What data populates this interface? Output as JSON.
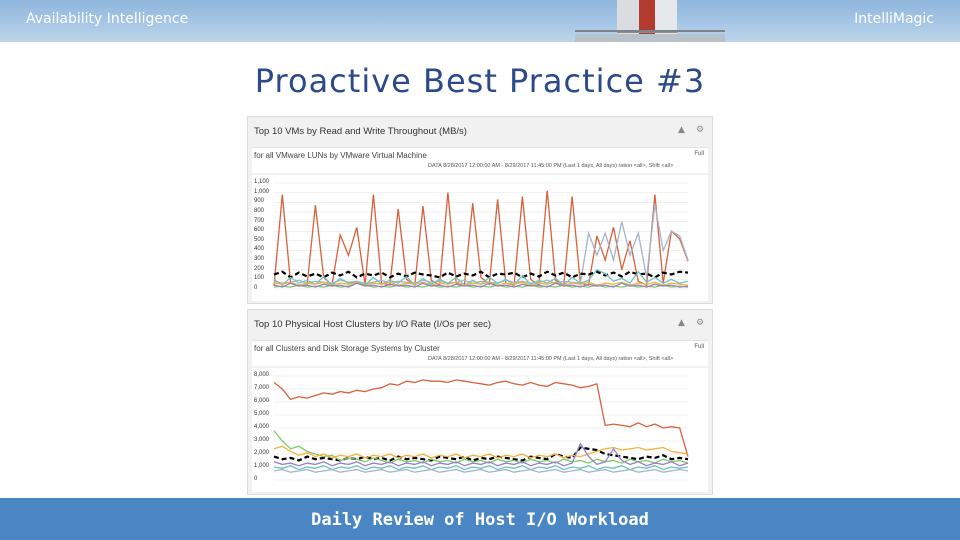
{
  "header": {
    "brand_left": "Availability Intelligence",
    "brand_right": "IntelliMagic"
  },
  "slide_title": "Proactive Best Practice #3",
  "footer": "Daily Review of Host I/O Workload",
  "colors": {
    "footer": "#4a86c4",
    "title": "#2c4a8a",
    "panel_bg": "#f1f1f1"
  },
  "panels": [
    {
      "title": "Top 10 VMs by Read and Write Throughout (MB/s)",
      "subtitle": "for all VMware LUNs by VMware Virtual Machine",
      "range": "DATA 8/28/2017 12:00:00 AM - 8/29/2017 11:45:00 PM (Last 1 days, All days)  ration <all>, Shift <all>",
      "full_label": "Full",
      "controls": [
        "collapse-icon",
        "gear-icon"
      ],
      "chart_data": {
        "type": "line",
        "y_ticks": [
          "1,100",
          "1,000",
          "900",
          "800",
          "700",
          "600",
          "500",
          "400",
          "300",
          "200",
          "100",
          "0"
        ],
        "ylim": [
          0,
          1100
        ],
        "series": [
          {
            "color": "#d9603b",
            "values": [
              30,
              980,
              60,
              30,
              40,
              870,
              120,
              40,
              560,
              350,
              640,
              40,
              980,
              60,
              40,
              830,
              100,
              40,
              860,
              90,
              40,
              1000,
              60,
              40,
              890,
              120,
              50,
              930,
              60,
              40,
              960,
              100,
              40,
              1020,
              90,
              40,
              960,
              60,
              40,
              550,
              300,
              640,
              200,
              500,
              80,
              40,
              980,
              60,
              600,
              520,
              290
            ]
          },
          {
            "color": "#a5b4c9",
            "values": [
              80,
              60,
              70,
              90,
              60,
              80,
              70,
              60,
              90,
              70,
              80,
              60,
              70,
              90,
              60,
              80,
              70,
              60,
              90,
              70,
              80,
              60,
              70,
              90,
              60,
              80,
              70,
              60,
              90,
              70,
              80,
              60,
              70,
              90,
              60,
              80,
              70,
              60,
              580,
              350,
              580,
              300,
              700,
              350,
              580,
              120,
              880,
              400,
              600,
              550,
              300
            ]
          },
          {
            "color": "#000000",
            "dashed": true,
            "values": [
              150,
              180,
              120,
              170,
              130,
              160,
              120,
              170,
              140,
              180,
              120,
              160,
              140,
              170,
              120,
              160,
              130,
              170,
              150,
              140,
              120,
              170,
              130,
              160,
              140,
              180,
              120,
              160,
              150,
              170,
              120,
              160,
              130,
              180,
              140,
              170,
              120,
              160,
              150,
              180,
              140,
              170,
              130,
              180,
              150,
              160,
              120,
              170,
              150,
              180,
              170
            ]
          },
          {
            "color": "#6cc3c0",
            "values": [
              100,
              40,
              120,
              60,
              90,
              50,
              130,
              40,
              110,
              60,
              80,
              40,
              120,
              50,
              90,
              60,
              130,
              40,
              110,
              50,
              100,
              60,
              120,
              40,
              90,
              50,
              120,
              60,
              100,
              40,
              140,
              50,
              90,
              60,
              110,
              40,
              120,
              60,
              90,
              200,
              160,
              80,
              110,
              60,
              180,
              70,
              120,
              60,
              100,
              60,
              80
            ]
          },
          {
            "color": "#f2b33d",
            "values": [
              60,
              50,
              70,
              40,
              60,
              50,
              70,
              40,
              60,
              50,
              70,
              40,
              60,
              50,
              70,
              40,
              60,
              50,
              70,
              40,
              60,
              50,
              70,
              40,
              60,
              50,
              70,
              40,
              60,
              50,
              70,
              40,
              60,
              50,
              70,
              40,
              60,
              50,
              70,
              40,
              60,
              50,
              70,
              40,
              60,
              50,
              70,
              40,
              60,
              50,
              40
            ]
          },
          {
            "color": "#7dc86b",
            "values": [
              20,
              30,
              20,
              40,
              20,
              30,
              20,
              40,
              20,
              30,
              60,
              40,
              20,
              30,
              20,
              40,
              20,
              30,
              20,
              40,
              20,
              30,
              20,
              40,
              20,
              30,
              20,
              40,
              20,
              30,
              20,
              40,
              20,
              30,
              20,
              40,
              20,
              30,
              20,
              40,
              20,
              30,
              20,
              40,
              20,
              30,
              20,
              40,
              20,
              30,
              20
            ]
          },
          {
            "color": "#9b7fc6",
            "values": [
              40,
              20,
              60,
              30,
              40,
              20,
              50,
              30,
              40,
              20,
              60,
              30,
              40,
              20,
              50,
              30,
              40,
              20,
              60,
              30,
              40,
              20,
              50,
              30,
              40,
              20,
              60,
              30,
              40,
              20,
              50,
              30,
              40,
              20,
              60,
              30,
              40,
              20,
              50,
              30,
              40,
              20,
              60,
              30,
              40,
              20,
              50,
              30,
              40,
              20,
              30
            ]
          }
        ]
      }
    },
    {
      "title": "Top 10 Physical Host Clusters by I/O Rate (I/Os per sec)",
      "subtitle": "for all Clusters and Disk Storage Systems by Cluster",
      "range": "DATA 8/28/2017 12:00:00 AM - 8/29/2017 11:45:00 PM (Last 1 days, All days)  ration <all>, Shift <all>",
      "full_label": "Full",
      "controls": [
        "collapse-icon",
        "gear-icon"
      ],
      "chart_data": {
        "type": "line",
        "y_ticks": [
          "8,000",
          "7,000",
          "6,000",
          "5,000",
          "4,000",
          "3,000",
          "2,000",
          "1,000",
          "0"
        ],
        "ylim": [
          0,
          8000
        ],
        "series": [
          {
            "color": "#d9603b",
            "values": [
              7500,
              7000,
              6200,
              6400,
              6300,
              6500,
              6700,
              6600,
              6800,
              6700,
              6900,
              6800,
              7000,
              7100,
              7400,
              7300,
              7600,
              7500,
              7700,
              7600,
              7600,
              7500,
              7700,
              7600,
              7500,
              7400,
              7300,
              7500,
              7600,
              7400,
              7300,
              7500,
              7300,
              7200,
              7500,
              7400,
              7300,
              7100,
              7200,
              7400,
              4200,
              4300,
              4200,
              4100,
              4400,
              4100,
              4300,
              4000,
              4100,
              4000,
              1800
            ]
          },
          {
            "color": "#000000",
            "dashed": true,
            "values": [
              1800,
              1600,
              1700,
              1500,
              1800,
              1600,
              1700,
              1600,
              1500,
              1700,
              1600,
              1800,
              1600,
              1700,
              1500,
              1800,
              1600,
              1700,
              1600,
              1500,
              1800,
              1700,
              1600,
              1800,
              1500,
              1700,
              1600,
              1800,
              1700,
              1600,
              1500,
              1800,
              1700,
              1600,
              2000,
              1800,
              1700,
              2500,
              2400,
              2300,
              2000,
              1900,
              1800,
              1700,
              1600,
              1800,
              1700,
              1900,
              1600,
              1700,
              1600
            ]
          },
          {
            "color": "#7dc86b",
            "values": [
              3800,
              3000,
              2400,
              2600,
              2200,
              2000,
              1800,
              1900,
              1500,
              1700,
              1600,
              1400,
              1700,
              1500,
              1300,
              1600,
              1400,
              1500,
              1300,
              1600,
              1400,
              1500,
              1300,
              1600,
              1400,
              1500,
              1300,
              1600,
              1400,
              1500,
              1300,
              1600,
              1400,
              1500,
              1300,
              1600,
              1400,
              1500,
              1300,
              1600,
              1400,
              1500,
              1300,
              1600,
              1400,
              1500,
              1300,
              1600,
              1400,
              1500,
              1300
            ]
          },
          {
            "color": "#f2b33d",
            "values": [
              2400,
              2600,
              2200,
              1900,
              2100,
              1800,
              2000,
              1700,
              1900,
              1800,
              2000,
              1700,
              1900,
              1800,
              2000,
              1700,
              1900,
              1800,
              2000,
              1700,
              1900,
              1800,
              2000,
              1700,
              1900,
              1800,
              2000,
              1700,
              1900,
              1800,
              2000,
              1700,
              1900,
              1800,
              2000,
              1700,
              1900,
              1800,
              2000,
              2200,
              2400,
              2500,
              2300,
              2400,
              2500,
              2300,
              2400,
              2500,
              2200,
              2100,
              2000
            ]
          },
          {
            "color": "#9b7fc6",
            "values": [
              1400,
              1200,
              1300,
              1100,
              1300,
              1200,
              1400,
              1100,
              1300,
              1200,
              1400,
              1100,
              1300,
              1200,
              1400,
              1100,
              1300,
              1200,
              1400,
              1100,
              1300,
              1200,
              1400,
              1100,
              1300,
              1200,
              1400,
              1100,
              1300,
              1200,
              1400,
              1100,
              1300,
              1200,
              1400,
              1100,
              1300,
              2800,
              1800,
              1200,
              1400,
              2400,
              1500,
              1200,
              1400,
              1100,
              1300,
              1200,
              1400,
              1100,
              1300
            ]
          },
          {
            "color": "#6cc3c0",
            "values": [
              1000,
              900,
              1100,
              800,
              1000,
              900,
              1100,
              800,
              1000,
              900,
              1100,
              800,
              1000,
              900,
              1100,
              800,
              1000,
              900,
              1100,
              800,
              1000,
              900,
              1100,
              800,
              1000,
              900,
              1100,
              800,
              1000,
              900,
              1100,
              800,
              1000,
              900,
              1100,
              800,
              1000,
              900,
              1100,
              800,
              1000,
              900,
              1100,
              800,
              1000,
              900,
              1100,
              800,
              1000,
              900,
              1000
            ]
          },
          {
            "color": "#a5b4c9",
            "values": [
              700,
              800,
              600,
              700,
              800,
              600,
              700,
              800,
              600,
              700,
              800,
              600,
              700,
              800,
              600,
              700,
              800,
              600,
              700,
              800,
              600,
              700,
              800,
              600,
              700,
              800,
              600,
              700,
              800,
              600,
              700,
              800,
              600,
              700,
              800,
              600,
              700,
              800,
              600,
              700,
              800,
              600,
              700,
              800,
              600,
              700,
              800,
              600,
              700,
              800,
              700
            ]
          }
        ]
      }
    }
  ]
}
